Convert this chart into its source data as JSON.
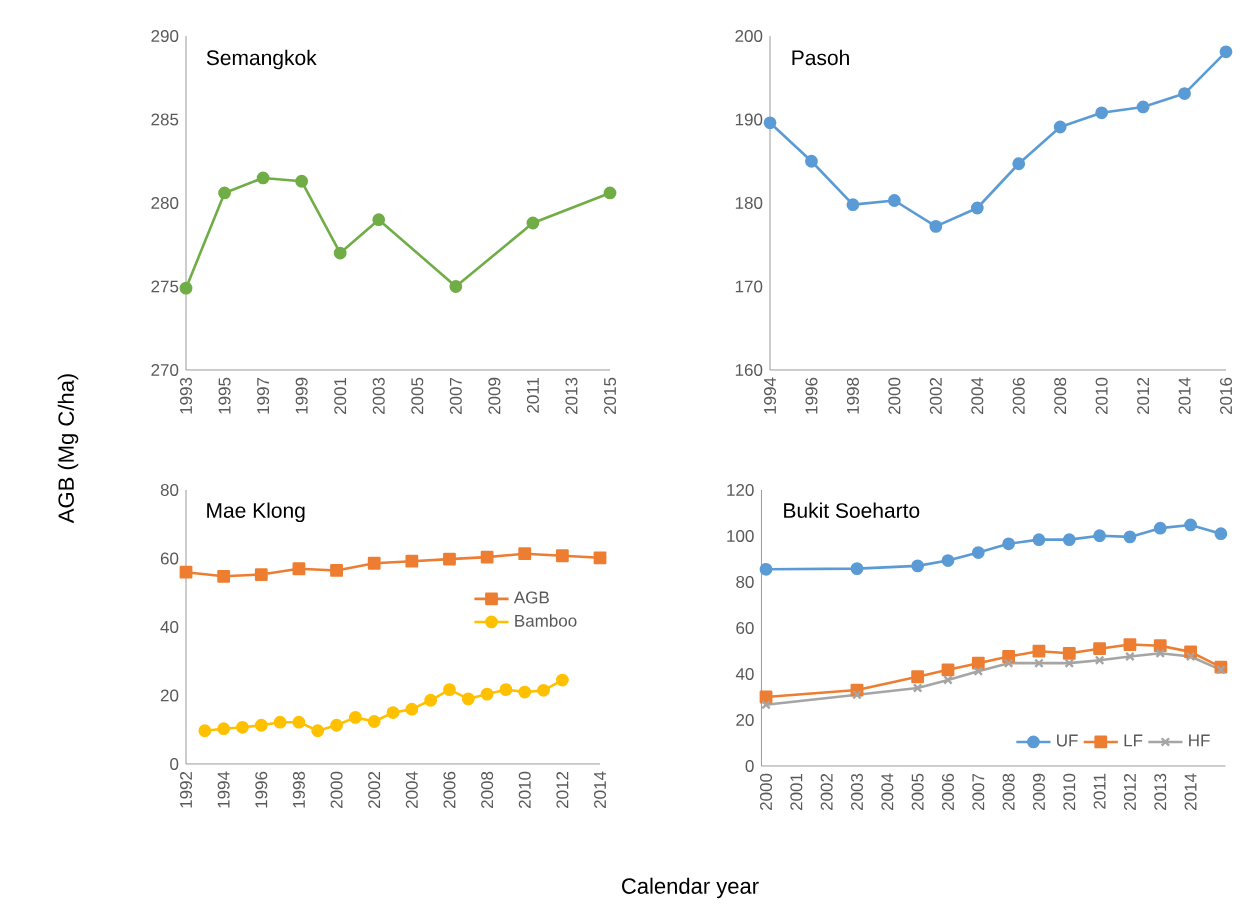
{
  "chart_data": [
    {
      "type": "line",
      "title": "Semangkok",
      "ylabel": "AGB (Mg C/ha)",
      "xlim": [
        1993,
        2015
      ],
      "xticks": [
        1993,
        1995,
        1997,
        1999,
        2001,
        2003,
        2005,
        2007,
        2009,
        2011,
        2013,
        2015
      ],
      "ylim": [
        270,
        290
      ],
      "yticks": [
        270,
        275,
        280,
        285,
        290
      ],
      "grid": false,
      "legend": false,
      "series": [
        {
          "color": "#70ad47",
          "marker": "circle",
          "line_style": "solid",
          "x": [
            1993,
            1995,
            1997,
            1999,
            2001,
            2003,
            2007,
            2011,
            2015
          ],
          "values": [
            274.9,
            280.6,
            281.5,
            281.3,
            277.0,
            279.0,
            275.0,
            278.8,
            280.6
          ]
        }
      ]
    },
    {
      "type": "line",
      "title": "Pasoh",
      "xlim": [
        1994,
        2016
      ],
      "xticks": [
        1994,
        1996,
        1998,
        2000,
        2002,
        2004,
        2006,
        2008,
        2010,
        2012,
        2014,
        2016
      ],
      "ylim": [
        160,
        200
      ],
      "yticks": [
        160,
        170,
        180,
        190,
        200
      ],
      "grid": false,
      "legend": false,
      "series": [
        {
          "color": "#5b9bd5",
          "marker": "circle",
          "line_style": "solid",
          "x": [
            1994,
            1996,
            1998,
            2000,
            2002,
            2004,
            2006,
            2008,
            2010,
            2012,
            2014,
            2016
          ],
          "values": [
            189.6,
            185.0,
            179.8,
            180.3,
            177.2,
            179.4,
            184.7,
            189.1,
            190.8,
            191.5,
            193.1,
            198.1
          ]
        }
      ]
    },
    {
      "type": "line",
      "title": "Mae Klong",
      "xlabel": "Calendar year",
      "xlim": [
        1992,
        2014
      ],
      "xticks": [
        1992,
        1994,
        1996,
        1998,
        2000,
        2002,
        2004,
        2006,
        2008,
        2010,
        2012,
        2014
      ],
      "ylim": [
        0,
        80
      ],
      "yticks": [
        0,
        20,
        40,
        60,
        80
      ],
      "grid": false,
      "legend": "right",
      "series": [
        {
          "name": "AGB",
          "color": "#ed7d31",
          "marker": "square",
          "line_style": "solid",
          "x": [
            1992,
            1994,
            1996,
            1998,
            2000,
            2002,
            2004,
            2006,
            2008,
            2010,
            2012,
            2014
          ],
          "values": [
            56.0,
            54.8,
            55.3,
            57.0,
            56.5,
            58.6,
            59.2,
            59.8,
            60.4,
            61.4,
            60.8,
            60.2
          ]
        },
        {
          "name": "Bamboo",
          "color": "#ffc000",
          "marker": "circle",
          "line_style": "solid",
          "x": [
            1993,
            1994,
            1995,
            1996,
            1997,
            1998,
            1999,
            2000,
            2001,
            2002,
            2003,
            2004,
            2005,
            2006,
            2007,
            2008,
            2009,
            2010,
            2011,
            2012
          ],
          "values": [
            9.7,
            10.3,
            10.7,
            11.3,
            12.2,
            12.2,
            9.7,
            11.3,
            13.6,
            12.4,
            15.0,
            16.0,
            18.6,
            21.7,
            19.0,
            20.4,
            21.7,
            21.0,
            21.5,
            24.5
          ]
        }
      ]
    },
    {
      "type": "line",
      "title": "Bukit Soeharto",
      "categories": [
        "2000",
        "2001",
        "2002",
        "2003",
        "2004",
        "2005",
        "2006",
        "2007",
        "2008",
        "2009",
        "2010",
        "2011",
        "2012",
        "2013",
        "2014",
        null
      ],
      "ylim": [
        0,
        120
      ],
      "yticks": [
        0,
        20,
        40,
        60,
        80,
        100,
        120
      ],
      "grid": false,
      "legend": "bottom right",
      "series": [
        {
          "name": "UF",
          "color": "#5b9bd5",
          "marker": "circle",
          "line_style": "solid",
          "values": [
            85.5,
            null,
            null,
            85.8,
            null,
            87.0,
            89.3,
            92.8,
            96.6,
            98.4,
            98.4,
            100.1,
            99.6,
            103.4,
            104.8,
            101.0
          ]
        },
        {
          "name": "LF",
          "color": "#ed7d31",
          "marker": "square",
          "line_style": "solid",
          "values": [
            30.0,
            null,
            null,
            33.0,
            null,
            38.8,
            41.8,
            44.7,
            47.6,
            49.9,
            49.0,
            51.0,
            52.8,
            52.3,
            49.6,
            43.0
          ]
        },
        {
          "name": "HF",
          "color": "#a5a5a5",
          "marker": "cross",
          "line_style": "solid",
          "values": [
            26.6,
            null,
            null,
            31.0,
            null,
            33.9,
            37.4,
            41.2,
            44.7,
            44.7,
            44.7,
            46.0,
            47.6,
            49.0,
            47.6,
            41.8
          ]
        }
      ]
    }
  ]
}
